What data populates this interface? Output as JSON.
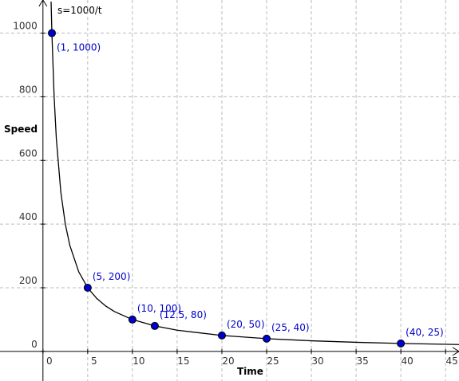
{
  "chart_data": {
    "type": "line",
    "x_label": "Time",
    "y_label": "Speed",
    "xlim": [
      -4.8,
      46.5
    ],
    "ylim": [
      -93,
      1104
    ],
    "xticks": [
      0,
      5,
      10,
      15,
      20,
      25,
      30,
      35,
      40,
      45
    ],
    "yticks": [
      0,
      200,
      400,
      600,
      800,
      1000
    ],
    "grid": true,
    "series": [
      {
        "name": "s=1000/t",
        "color": "#000000",
        "x": [
          0.91,
          1,
          1.25,
          1.5,
          2,
          2.5,
          3,
          4,
          5,
          6,
          7,
          8,
          10,
          12.5,
          15,
          20,
          25,
          30,
          35,
          40,
          46.5
        ],
        "values": [
          1098.9,
          1000,
          800,
          666.67,
          500,
          400,
          333.33,
          250,
          200,
          166.67,
          142.86,
          125,
          100,
          80,
          66.67,
          50,
          40,
          33.33,
          28.57,
          25,
          21.51
        ]
      }
    ],
    "points": {
      "color": "#0000cc",
      "x": [
        1,
        5,
        10,
        12.5,
        20,
        25,
        40
      ],
      "values": [
        1000,
        200,
        100,
        80,
        50,
        40,
        25
      ],
      "labels": [
        "(1, 1000)",
        "(5, 200)",
        "(10, 100)",
        "(12.5, 80)",
        "(20, 50)",
        "(25, 40)",
        "(40, 25)"
      ]
    }
  }
}
